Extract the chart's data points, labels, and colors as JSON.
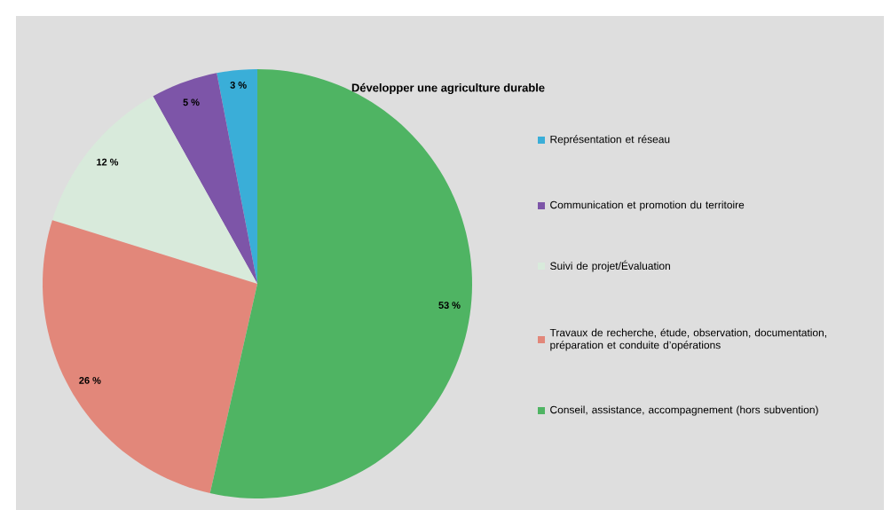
{
  "chart_data": {
    "type": "pie",
    "title": "Développer une agriculture durable",
    "categories": [
      "Représentation et réseau",
      "Communication et promotion du territoire",
      "Suivi de projet/Évaluation",
      "Travaux de recherche, étude, observation, documentation, préparation et conduite d’opérations",
      "Conseil, assistance, accompagnement (hors subvention)"
    ],
    "values": [
      3,
      5,
      12,
      26,
      53
    ],
    "colors": [
      "#3aaed8",
      "#7d55a8",
      "#d8eadb",
      "#e2877a",
      "#4fb463"
    ],
    "value_labels": [
      "3 %",
      "5 %",
      "12 %",
      "26 %",
      "53 %"
    ],
    "legend": "right"
  }
}
